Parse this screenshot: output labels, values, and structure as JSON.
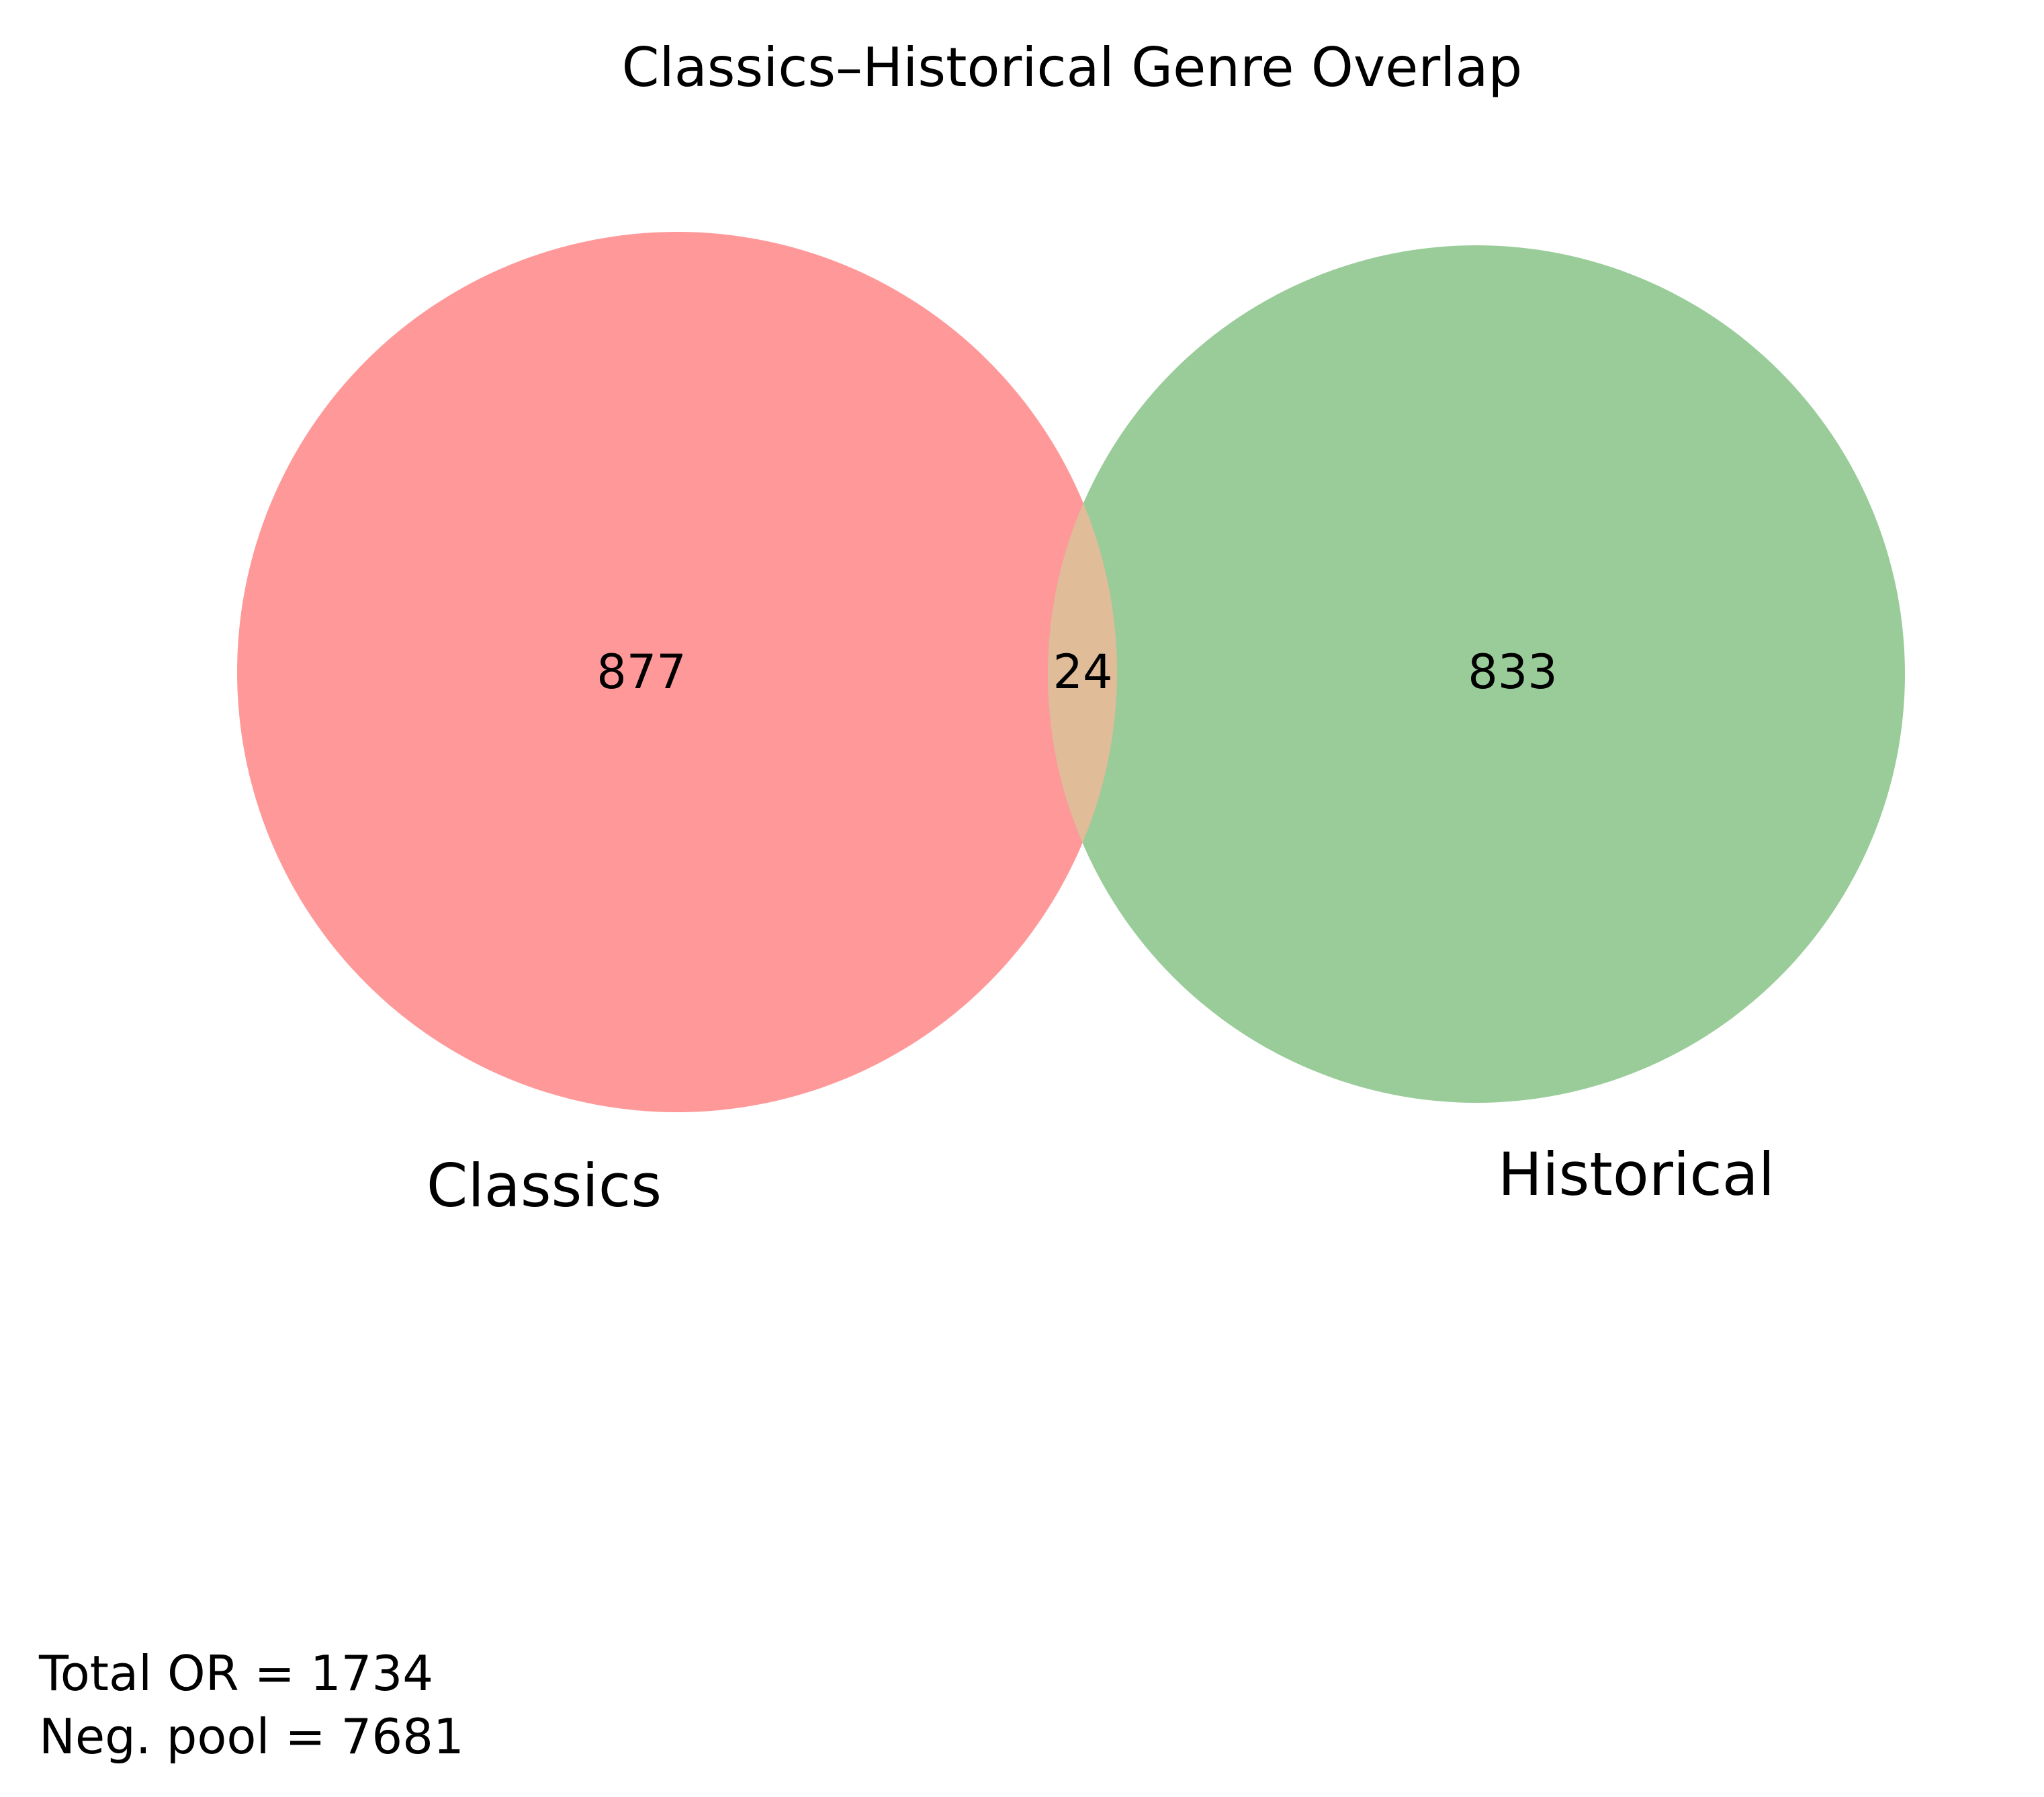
{
  "title": "Classics–Historical Genre Overlap",
  "chart_data": {
    "type": "venn",
    "sets": [
      {
        "name": "Classics",
        "only": "877",
        "color": "#ff9999"
      },
      {
        "name": "Historical",
        "only": "833",
        "color": "#99cc99"
      }
    ],
    "intersection": "24",
    "intersection_color": "#e0bc99"
  },
  "footnotes": {
    "total": "Total OR = 1734",
    "neg_pool": "Neg. pool = 7681"
  }
}
